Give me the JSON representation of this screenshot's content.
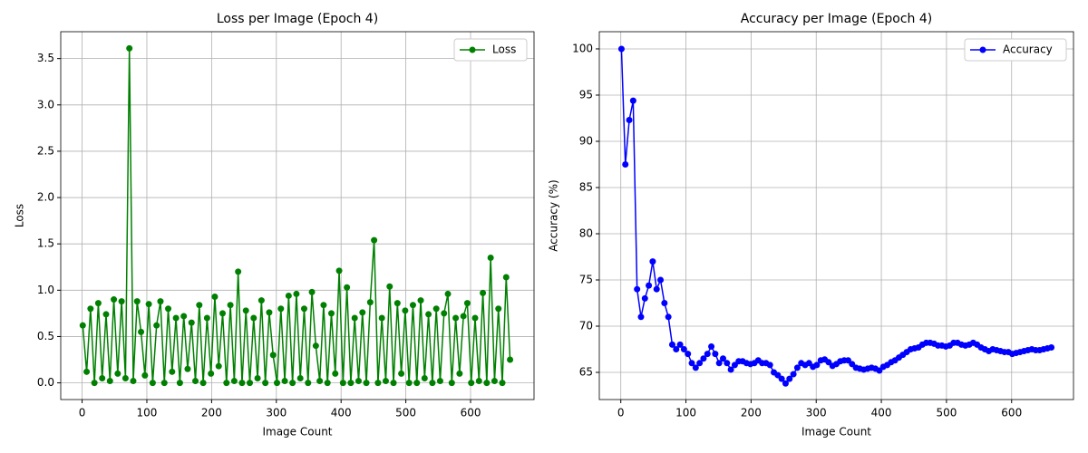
{
  "chart_data": [
    {
      "type": "line",
      "title": "Loss per Image (Epoch 4)",
      "xlabel": "Image Count",
      "ylabel": "Loss",
      "x": [
        1,
        7,
        13,
        19,
        25,
        31,
        37,
        43,
        49,
        55,
        61,
        67,
        73,
        79,
        85,
        91,
        97,
        103,
        109,
        115,
        121,
        127,
        133,
        139,
        145,
        151,
        157,
        163,
        169,
        175,
        181,
        187,
        193,
        199,
        205,
        211,
        217,
        223,
        229,
        235,
        241,
        247,
        253,
        259,
        265,
        271,
        277,
        283,
        289,
        295,
        301,
        307,
        313,
        319,
        325,
        331,
        337,
        343,
        349,
        355,
        361,
        367,
        373,
        379,
        385,
        391,
        397,
        403,
        409,
        415,
        421,
        427,
        433,
        439,
        445,
        451,
        457,
        463,
        469,
        475,
        481,
        487,
        493,
        499,
        505,
        511,
        517,
        523,
        529,
        535,
        541,
        547,
        553,
        559,
        565,
        571,
        577,
        583,
        589,
        595,
        601,
        607,
        613,
        619,
        625,
        631,
        637,
        643,
        649,
        655,
        661
      ],
      "series": [
        {
          "name": "Loss",
          "color": "#008000",
          "values": [
            0.62,
            0.12,
            0.8,
            0.0,
            0.86,
            0.05,
            0.74,
            0.02,
            0.9,
            0.1,
            0.88,
            0.05,
            3.61,
            0.02,
            0.88,
            0.55,
            0.08,
            0.85,
            0.0,
            0.62,
            0.88,
            0.0,
            0.8,
            0.12,
            0.7,
            0.0,
            0.72,
            0.15,
            0.65,
            0.02,
            0.84,
            0.0,
            0.7,
            0.1,
            0.93,
            0.18,
            0.75,
            0.0,
            0.84,
            0.02,
            1.2,
            0.0,
            0.78,
            0.0,
            0.7,
            0.05,
            0.89,
            0.0,
            0.76,
            0.3,
            0.0,
            0.8,
            0.02,
            0.94,
            0.0,
            0.96,
            0.05,
            0.8,
            0.0,
            0.98,
            0.4,
            0.02,
            0.84,
            0.0,
            0.75,
            0.1,
            1.21,
            0.0,
            1.03,
            0.0,
            0.7,
            0.02,
            0.76,
            0.0,
            0.87,
            1.54,
            0.0,
            0.7,
            0.02,
            1.04,
            0.0,
            0.86,
            0.1,
            0.78,
            0.0,
            0.84,
            0.0,
            0.89,
            0.05,
            0.74,
            0.0,
            0.8,
            0.02,
            0.75,
            0.96,
            0.0,
            0.7,
            0.1,
            0.72,
            0.86,
            0.0,
            0.7,
            0.02,
            0.97,
            0.0,
            1.35,
            0.02,
            0.8,
            0.0,
            1.14,
            0.25
          ]
        }
      ],
      "xlim": [
        -33,
        698
      ],
      "xticks": [
        0,
        100,
        200,
        300,
        400,
        500,
        600
      ],
      "ylim": [
        -0.18,
        3.79
      ],
      "yticks": [
        {
          "value": 0,
          "label": "0.0"
        },
        {
          "value": 0.5,
          "label": "0.5"
        },
        {
          "value": 1,
          "label": "1.0"
        },
        {
          "value": 1.5,
          "label": "1.5"
        },
        {
          "value": 2,
          "label": "2.0"
        },
        {
          "value": 2.5,
          "label": "2.5"
        },
        {
          "value": 3,
          "label": "3.0"
        },
        {
          "value": 3.5,
          "label": "3.5"
        }
      ],
      "grid": true,
      "legend": "upper right"
    },
    {
      "type": "line",
      "title": "Accuracy per Image (Epoch 4)",
      "xlabel": "Image Count",
      "ylabel": "Accuracy (%)",
      "x": [
        1,
        7,
        13,
        19,
        25,
        31,
        37,
        43,
        49,
        55,
        61,
        67,
        73,
        79,
        85,
        91,
        97,
        103,
        109,
        115,
        121,
        127,
        133,
        139,
        145,
        151,
        157,
        163,
        169,
        175,
        181,
        187,
        193,
        199,
        205,
        211,
        217,
        223,
        229,
        235,
        241,
        247,
        253,
        259,
        265,
        271,
        277,
        283,
        289,
        295,
        301,
        307,
        313,
        319,
        325,
        331,
        337,
        343,
        349,
        355,
        361,
        367,
        373,
        379,
        385,
        391,
        397,
        403,
        409,
        415,
        421,
        427,
        433,
        439,
        445,
        451,
        457,
        463,
        469,
        475,
        481,
        487,
        493,
        499,
        505,
        511,
        517,
        523,
        529,
        535,
        541,
        547,
        553,
        559,
        565,
        571,
        577,
        583,
        589,
        595,
        601,
        607,
        613,
        619,
        625,
        631,
        637,
        643,
        649,
        655,
        661
      ],
      "series": [
        {
          "name": "Accuracy",
          "color": "#0000ff",
          "values": [
            100,
            87.5,
            92.3,
            94.4,
            74,
            71,
            73,
            74.4,
            77,
            74,
            75,
            72.5,
            71,
            68,
            67.5,
            68,
            67.5,
            67,
            66,
            65.5,
            66,
            66.5,
            67,
            67.8,
            67,
            66,
            66.5,
            66,
            65.3,
            65.8,
            66.2,
            66.2,
            66,
            65.9,
            66,
            66.3,
            66,
            66,
            65.8,
            65,
            64.7,
            64.3,
            63.8,
            64.3,
            64.8,
            65.5,
            66,
            65.8,
            66,
            65.6,
            65.8,
            66.3,
            66.4,
            66.1,
            65.7,
            65.9,
            66.2,
            66.3,
            66.3,
            65.9,
            65.5,
            65.4,
            65.3,
            65.4,
            65.5,
            65.4,
            65.2,
            65.6,
            65.8,
            66.1,
            66.3,
            66.6,
            66.9,
            67.2,
            67.5,
            67.6,
            67.7,
            68,
            68.2,
            68.2,
            68.1,
            67.9,
            67.9,
            67.8,
            67.9,
            68.2,
            68.2,
            68,
            67.9,
            68,
            68.2,
            68,
            67.7,
            67.5,
            67.3,
            67.5,
            67.4,
            67.3,
            67.2,
            67.2,
            67,
            67.1,
            67.2,
            67.3,
            67.4,
            67.5,
            67.4,
            67.4,
            67.5,
            67.6,
            67.7
          ]
        }
      ],
      "xlim": [
        -33,
        695
      ],
      "xticks": [
        0,
        100,
        200,
        300,
        400,
        500,
        600
      ],
      "ylim": [
        62.06,
        101.86
      ],
      "yticks": [
        65,
        70,
        75,
        80,
        85,
        90,
        95,
        100
      ],
      "grid": true,
      "legend": "upper right"
    }
  ]
}
